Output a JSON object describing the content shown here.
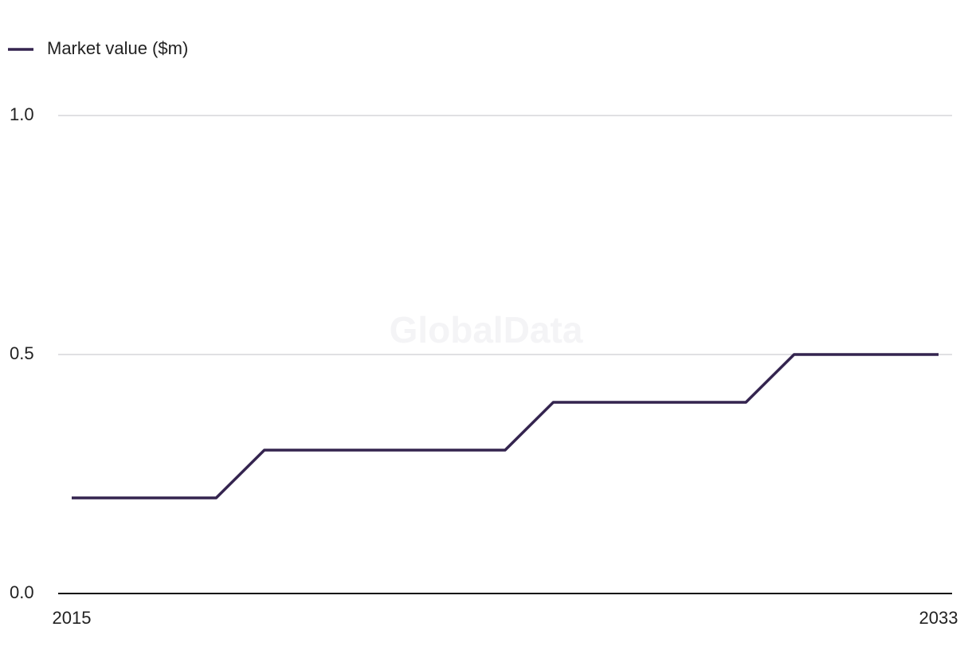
{
  "chart_data": {
    "type": "line",
    "watermark": "GlobalData",
    "x": [
      2015,
      2016,
      2017,
      2018,
      2019,
      2020,
      2021,
      2022,
      2023,
      2024,
      2025,
      2026,
      2027,
      2028,
      2029,
      2030,
      2031,
      2032,
      2033
    ],
    "series": [
      {
        "name": "Market value ($m)",
        "color": "#34244f",
        "values": [
          0.2,
          0.2,
          0.2,
          0.2,
          0.3,
          0.3,
          0.3,
          0.3,
          0.3,
          0.3,
          0.4,
          0.4,
          0.4,
          0.4,
          0.4,
          0.5,
          0.5,
          0.5,
          0.5
        ]
      }
    ],
    "xlim": [
      2015,
      2033
    ],
    "xticks": [
      2015,
      2033
    ],
    "ylim": [
      0,
      1
    ],
    "yticks": [
      {
        "value": 0,
        "label": "0.0"
      },
      {
        "value": 0.5,
        "label": "0.5"
      },
      {
        "value": 1,
        "label": "1.0"
      }
    ],
    "grid": true,
    "legend": "top-left"
  }
}
